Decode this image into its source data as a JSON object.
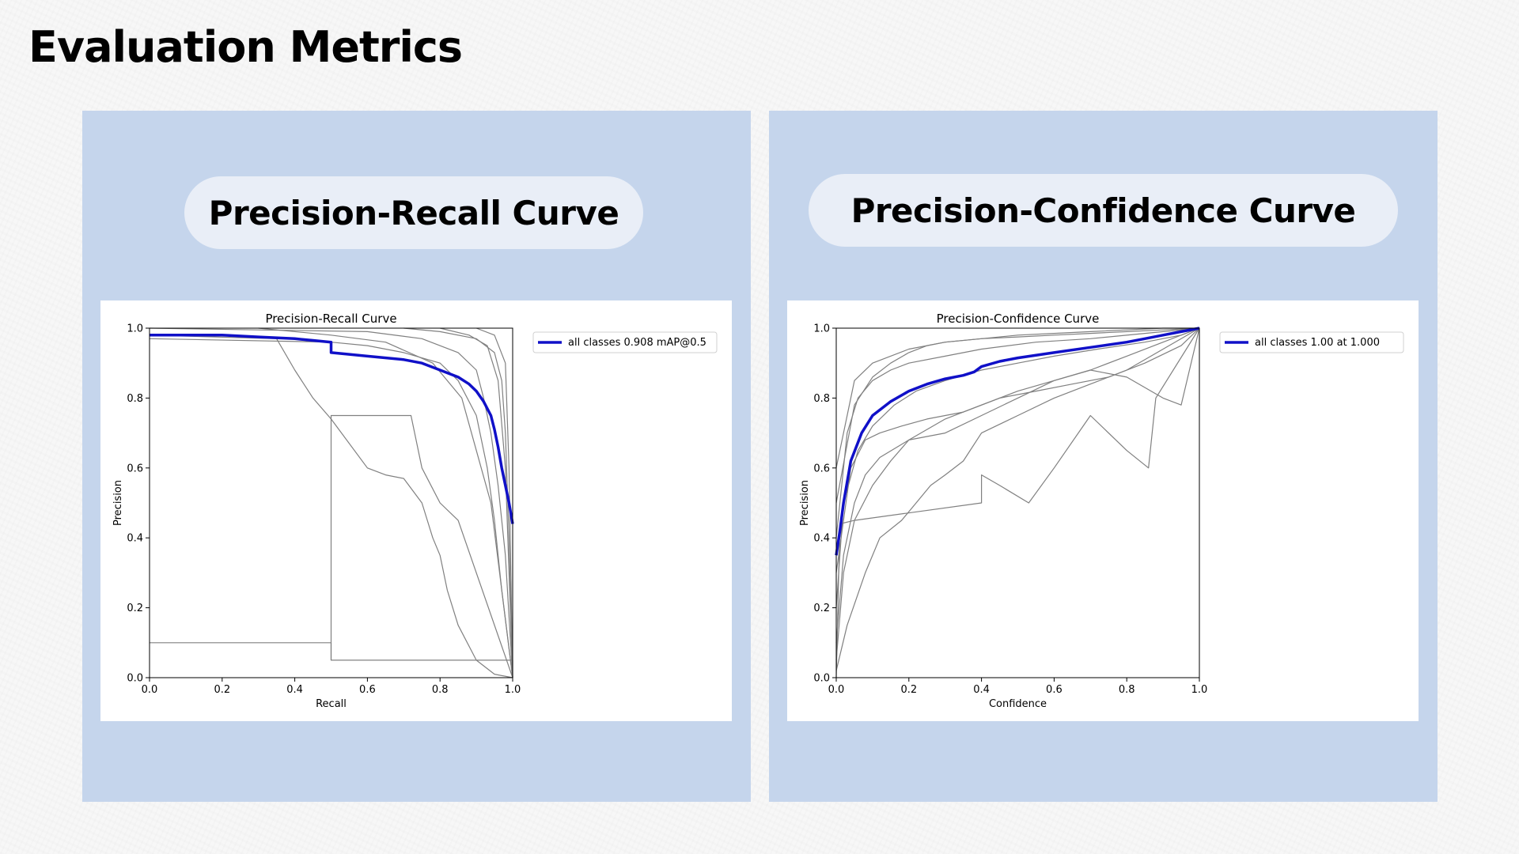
{
  "page": {
    "title": "Evaluation Metrics"
  },
  "panels": [
    {
      "heading": "Precision-Recall Curve"
    },
    {
      "heading": "Precision-Confidence Curve"
    }
  ],
  "chart_data": [
    {
      "type": "line",
      "title": "Precision-Recall Curve",
      "xlabel": "Recall",
      "ylabel": "Precision",
      "xlim": [
        0,
        1
      ],
      "ylim": [
        0,
        1
      ],
      "xticks": [
        "0.0",
        "0.2",
        "0.4",
        "0.6",
        "0.8",
        "1.0"
      ],
      "yticks": [
        "0.0",
        "0.2",
        "0.4",
        "0.6",
        "0.8",
        "1.0"
      ],
      "grid": false,
      "legend": {
        "position": "top-right",
        "entries": [
          "all classes 0.908 mAP@0.5"
        ]
      },
      "colors": {
        "main": "#1010c8",
        "class": "#808080"
      },
      "series": [
        {
          "name": "all classes 0.908 mAP@0.5",
          "role": "main",
          "x": [
            0,
            0.2,
            0.3,
            0.4,
            0.45,
            0.5,
            0.5,
            0.6,
            0.7,
            0.75,
            0.8,
            0.85,
            0.88,
            0.9,
            0.92,
            0.94,
            0.95,
            0.96,
            0.97,
            0.98,
            0.99,
            1.0
          ],
          "y": [
            0.98,
            0.98,
            0.975,
            0.97,
            0.965,
            0.96,
            0.93,
            0.92,
            0.91,
            0.9,
            0.88,
            0.86,
            0.84,
            0.82,
            0.79,
            0.75,
            0.71,
            0.66,
            0.6,
            0.55,
            0.5,
            0.44
          ]
        },
        {
          "role": "class",
          "x": [
            0,
            0.35,
            0.4,
            0.45,
            0.5,
            0.6,
            0.65,
            0.7,
            0.75,
            0.78,
            0.8,
            0.82,
            0.85,
            0.9,
            0.95,
            1.0
          ],
          "y": [
            0.98,
            0.97,
            0.88,
            0.8,
            0.74,
            0.6,
            0.58,
            0.57,
            0.5,
            0.4,
            0.35,
            0.25,
            0.15,
            0.05,
            0.01,
            0.0
          ]
        },
        {
          "role": "class",
          "x": [
            0,
            0.5,
            0.5,
            1.0,
            1.0
          ],
          "y": [
            0.1,
            0.1,
            0.05,
            0.05,
            0.0
          ]
        },
        {
          "role": "class",
          "x": [
            0.5,
            0.5,
            0.72,
            0.75,
            0.8,
            0.85,
            1.0
          ],
          "y": [
            0.05,
            0.75,
            0.75,
            0.6,
            0.5,
            0.45,
            0.0
          ]
        },
        {
          "role": "class",
          "x": [
            0,
            0.5,
            0.6,
            0.7,
            0.8,
            0.85,
            0.9,
            0.93,
            0.95,
            0.97,
            1.0
          ],
          "y": [
            0.97,
            0.96,
            0.95,
            0.93,
            0.9,
            0.85,
            0.75,
            0.6,
            0.45,
            0.25,
            0.0
          ]
        },
        {
          "role": "class",
          "x": [
            0,
            0.6,
            0.75,
            0.85,
            0.9,
            0.92,
            0.94,
            0.96,
            0.98,
            1.0
          ],
          "y": [
            1.0,
            0.99,
            0.97,
            0.93,
            0.88,
            0.8,
            0.7,
            0.55,
            0.35,
            0.0
          ]
        },
        {
          "role": "class",
          "x": [
            0.7,
            0.8,
            0.9,
            0.95,
            0.97,
            0.98,
            0.99,
            1.0
          ],
          "y": [
            1.0,
            0.99,
            0.97,
            0.93,
            0.85,
            0.7,
            0.4,
            0.0
          ]
        },
        {
          "role": "class",
          "x": [
            0.3,
            0.5,
            0.65,
            0.78,
            0.86,
            0.9,
            0.94,
            1.0
          ],
          "y": [
            1.0,
            0.98,
            0.96,
            0.9,
            0.8,
            0.65,
            0.5,
            0.0
          ]
        },
        {
          "role": "class",
          "x": [
            0.8,
            0.88,
            0.93,
            0.96,
            0.98,
            1.0
          ],
          "y": [
            1.0,
            0.98,
            0.95,
            0.85,
            0.6,
            0.0
          ]
        },
        {
          "role": "class",
          "x": [
            0.9,
            0.95,
            0.98,
            0.99,
            1.0
          ],
          "y": [
            1.0,
            0.98,
            0.9,
            0.6,
            0.0
          ]
        }
      ]
    },
    {
      "type": "line",
      "title": "Precision-Confidence Curve",
      "xlabel": "Confidence",
      "ylabel": "Precision",
      "xlim": [
        0,
        1
      ],
      "ylim": [
        0,
        1
      ],
      "xticks": [
        "0.0",
        "0.2",
        "0.4",
        "0.6",
        "0.8",
        "1.0"
      ],
      "yticks": [
        "0.0",
        "0.2",
        "0.4",
        "0.6",
        "0.8",
        "1.0"
      ],
      "grid": false,
      "legend": {
        "position": "top-right",
        "entries": [
          "all classes 1.00 at 1.000"
        ]
      },
      "colors": {
        "main": "#1010c8",
        "class": "#808080"
      },
      "series": [
        {
          "name": "all classes 1.00 at 1.000",
          "role": "main",
          "x": [
            0,
            0.01,
            0.02,
            0.04,
            0.07,
            0.1,
            0.15,
            0.2,
            0.25,
            0.3,
            0.35,
            0.38,
            0.4,
            0.45,
            0.5,
            0.6,
            0.7,
            0.8,
            0.85,
            0.9,
            0.95,
            1.0
          ],
          "y": [
            0.35,
            0.42,
            0.5,
            0.62,
            0.7,
            0.75,
            0.79,
            0.82,
            0.84,
            0.855,
            0.865,
            0.875,
            0.89,
            0.905,
            0.915,
            0.93,
            0.945,
            0.96,
            0.97,
            0.98,
            0.99,
            1.0
          ]
        },
        {
          "role": "class",
          "x": [
            0,
            0.01,
            0.05,
            0.4,
            0.4,
            0.45,
            0.53,
            0.6,
            0.7,
            0.8,
            0.86,
            0.88,
            1.0
          ],
          "y": [
            0.0,
            0.44,
            0.45,
            0.5,
            0.58,
            0.55,
            0.5,
            0.6,
            0.75,
            0.65,
            0.6,
            0.8,
            1.0
          ]
        },
        {
          "role": "class",
          "x": [
            0,
            0.03,
            0.08,
            0.12,
            0.18,
            0.22,
            0.26,
            0.3,
            0.35,
            0.4,
            0.5,
            0.6,
            0.7,
            0.8,
            0.9,
            1.0
          ],
          "y": [
            0.02,
            0.15,
            0.3,
            0.4,
            0.45,
            0.5,
            0.55,
            0.58,
            0.62,
            0.7,
            0.75,
            0.8,
            0.84,
            0.88,
            0.94,
            1.0
          ]
        },
        {
          "role": "class",
          "x": [
            0,
            0.02,
            0.05,
            0.1,
            0.15,
            0.2,
            0.3,
            0.4,
            0.5,
            0.6,
            0.7,
            0.8,
            0.9,
            1.0
          ],
          "y": [
            0.05,
            0.3,
            0.45,
            0.55,
            0.62,
            0.68,
            0.74,
            0.78,
            0.82,
            0.85,
            0.88,
            0.92,
            0.96,
            1.0
          ]
        },
        {
          "role": "class",
          "x": [
            0,
            0.02,
            0.06,
            0.1,
            0.16,
            0.22,
            0.3,
            0.4,
            0.5,
            0.6,
            0.72,
            0.85,
            0.95,
            1.0
          ],
          "y": [
            0.2,
            0.5,
            0.65,
            0.72,
            0.78,
            0.82,
            0.85,
            0.88,
            0.9,
            0.92,
            0.94,
            0.96,
            0.98,
            1.0
          ]
        },
        {
          "role": "class",
          "x": [
            0,
            0.03,
            0.06,
            0.1,
            0.15,
            0.2,
            0.3,
            0.4,
            0.55,
            0.7,
            0.85,
            1.0
          ],
          "y": [
            0.4,
            0.7,
            0.8,
            0.85,
            0.88,
            0.9,
            0.92,
            0.94,
            0.96,
            0.97,
            0.985,
            1.0
          ]
        },
        {
          "role": "class",
          "x": [
            0,
            0.04,
            0.08,
            0.12,
            0.18,
            0.25,
            0.35,
            0.45,
            0.55,
            0.65,
            0.75,
            0.85,
            0.95,
            1.0
          ],
          "y": [
            0.3,
            0.6,
            0.68,
            0.7,
            0.72,
            0.74,
            0.76,
            0.8,
            0.82,
            0.84,
            0.86,
            0.9,
            0.95,
            1.0
          ]
        },
        {
          "role": "class",
          "x": [
            0,
            0.05,
            0.1,
            0.15,
            0.2,
            0.25,
            0.3,
            0.4,
            0.5,
            0.6,
            0.7,
            0.8,
            0.9,
            1.0
          ],
          "y": [
            0.5,
            0.78,
            0.86,
            0.9,
            0.93,
            0.95,
            0.96,
            0.97,
            0.98,
            0.985,
            0.99,
            0.995,
            1.0,
            1.0
          ]
        },
        {
          "role": "class",
          "x": [
            0,
            0.02,
            0.05,
            0.08,
            0.12,
            0.2,
            0.3,
            0.4,
            0.5,
            0.6,
            0.7,
            0.8,
            0.9,
            0.95,
            1.0
          ],
          "y": [
            0.1,
            0.35,
            0.5,
            0.58,
            0.63,
            0.68,
            0.7,
            0.75,
            0.8,
            0.85,
            0.88,
            0.86,
            0.8,
            0.78,
            1.0
          ]
        },
        {
          "role": "class",
          "x": [
            0,
            0.05,
            0.1,
            0.2,
            0.3,
            0.4,
            0.5,
            0.6,
            0.7,
            0.8,
            0.9,
            1.0
          ],
          "y": [
            0.6,
            0.85,
            0.9,
            0.94,
            0.96,
            0.97,
            0.975,
            0.98,
            0.985,
            0.99,
            0.995,
            1.0
          ]
        }
      ]
    }
  ]
}
